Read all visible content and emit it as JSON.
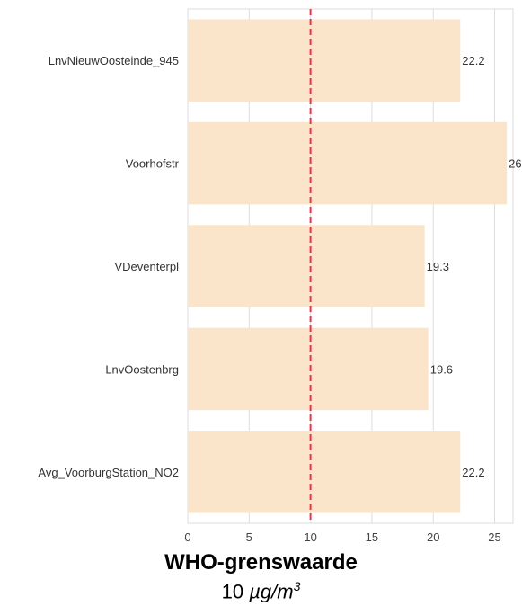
{
  "chart_data": {
    "type": "bar",
    "orientation": "horizontal",
    "categories": [
      "LnvNieuwOosteinde_945",
      "Voorhofstr",
      "VDeventerpl",
      "LnvOostenbrg",
      "Avg_VoorburgStation_NO2"
    ],
    "values": [
      22.2,
      26.0,
      19.3,
      19.6,
      22.2
    ],
    "data_labels": [
      "22.2",
      "26.0",
      "19.3",
      "19.6",
      "22.2"
    ],
    "xlim": [
      0,
      26.5
    ],
    "xticks": [
      0,
      5,
      10,
      15,
      20,
      25
    ],
    "grid": true,
    "bar_color": "#fae5cb",
    "reference_line": {
      "value": 10,
      "color": "#ee3344",
      "style": "dashed"
    },
    "annotation": {
      "title": "WHO-grenswaarde",
      "value": "10",
      "unit": "µg/m",
      "unit_exponent": "3"
    }
  }
}
